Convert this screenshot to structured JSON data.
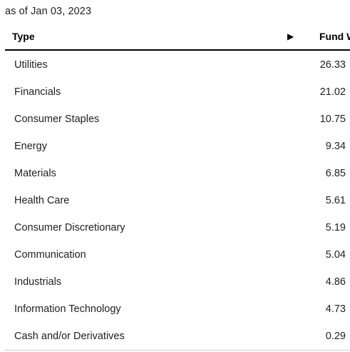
{
  "as_of": "as of Jan 03, 2023",
  "table": {
    "headers": {
      "type": "Type",
      "sort_arrow": "▶",
      "fund": "Fund Weight (%)"
    },
    "rows": [
      {
        "type": "Utilities",
        "value": "26.33"
      },
      {
        "type": "Financials",
        "value": "21.02"
      },
      {
        "type": "Consumer Staples",
        "value": "10.75"
      },
      {
        "type": "Energy",
        "value": "9.34"
      },
      {
        "type": "Materials",
        "value": "6.85"
      },
      {
        "type": "Health Care",
        "value": "5.61"
      },
      {
        "type": "Consumer Discretionary",
        "value": "5.19"
      },
      {
        "type": "Communication",
        "value": "5.04"
      },
      {
        "type": "Industrials",
        "value": "4.86"
      },
      {
        "type": "Information Technology",
        "value": "4.73"
      },
      {
        "type": "Cash and/or Derivatives",
        "value": "0.29"
      }
    ]
  }
}
